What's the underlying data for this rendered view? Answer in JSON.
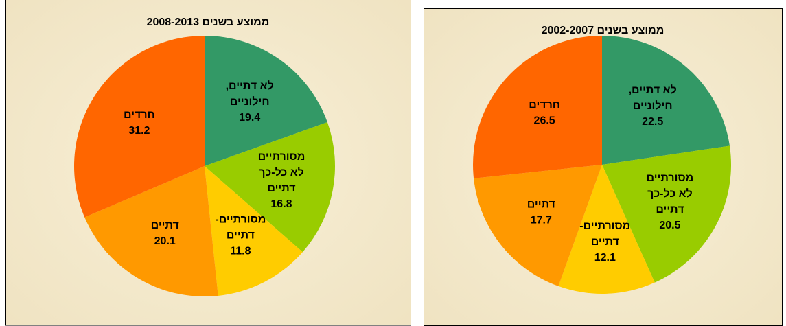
{
  "chart_data": [
    {
      "type": "pie",
      "title": "ממוצע בשנים 2008-2013",
      "categories": [
        [
          "לא דתיים,",
          "חילוניים"
        ],
        [
          "מסורתיים",
          "לא כל-כך",
          "דתיים"
        ],
        [
          "מסורתיים-",
          "דתיים"
        ],
        [
          "דתיים"
        ],
        [
          "חרדים"
        ]
      ],
      "values": [
        19.4,
        16.8,
        11.8,
        20.1,
        31.2
      ],
      "colors": [
        "#339966",
        "#99cc00",
        "#ffcc00",
        "#ff9900",
        "#ff6600"
      ]
    },
    {
      "type": "pie",
      "title": "ממוצע בשנים 2002-2007",
      "categories": [
        [
          "לא דתיים,",
          "חילוניים"
        ],
        [
          "מסורתיים",
          "לא כל-כך",
          "דתיים"
        ],
        [
          "מסורתיים-",
          "דתיים"
        ],
        [
          "דתיים"
        ],
        [
          "חרדים"
        ]
      ],
      "values": [
        22.5,
        20.5,
        12.1,
        17.7,
        26.5
      ],
      "colors": [
        "#339966",
        "#99cc00",
        "#ffcc00",
        "#ff9900",
        "#ff6600"
      ]
    }
  ]
}
